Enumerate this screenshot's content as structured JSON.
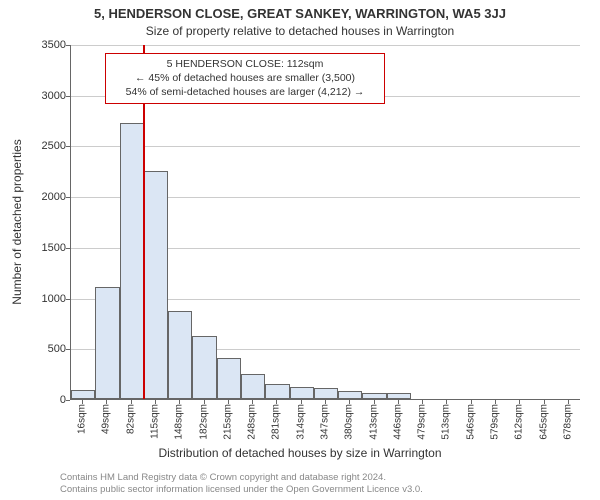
{
  "title_line1": "5, HENDERSON CLOSE, GREAT SANKEY, WARRINGTON, WA5 3JJ",
  "title_line2": "Size of property relative to detached houses in Warrington",
  "y_axis": {
    "label": "Number of detached properties",
    "min": 0,
    "max": 3500,
    "step": 500,
    "ticks": [
      0,
      500,
      1000,
      1500,
      2000,
      2500,
      3000,
      3500
    ],
    "fontsize": 11
  },
  "x_axis": {
    "label": "Distribution of detached houses by size in Warrington",
    "tick_labels": [
      "16sqm",
      "49sqm",
      "82sqm",
      "115sqm",
      "148sqm",
      "182sqm",
      "215sqm",
      "248sqm",
      "281sqm",
      "314sqm",
      "347sqm",
      "380sqm",
      "413sqm",
      "446sqm",
      "479sqm",
      "513sqm",
      "546sqm",
      "579sqm",
      "612sqm",
      "645sqm",
      "678sqm"
    ],
    "fontsize": 10
  },
  "histogram": {
    "type": "histogram",
    "bar_fill": "#dbe6f4",
    "bar_stroke": "#666666",
    "values": [
      90,
      1100,
      2720,
      2250,
      870,
      620,
      400,
      250,
      150,
      120,
      110,
      80,
      60,
      60,
      0,
      0,
      0,
      0,
      0,
      0,
      0
    ],
    "bar_count": 21
  },
  "marker_line": {
    "color": "#cc0000",
    "bin_index_left_edge": 3,
    "position_fraction_in_bin": 0.0
  },
  "annotation": {
    "border_color": "#cc0000",
    "lines": [
      "5 HENDERSON CLOSE: 112sqm",
      "← 45% of detached houses are smaller (3,500)",
      "54% of semi-detached houses are larger (4,212) →"
    ]
  },
  "grid": {
    "color": "#cccccc"
  },
  "background_color": "#ffffff",
  "attribution": {
    "line1": "Contains HM Land Registry data © Crown copyright and database right 2024.",
    "line2": "Contains public sector information licensed under the Open Government Licence v3.0."
  },
  "title_fontsize": 13,
  "subtitle_fontsize": 12,
  "label_fontsize": 12,
  "annotation_fontsize": 10.5,
  "attribution_fontsize": 9.5
}
